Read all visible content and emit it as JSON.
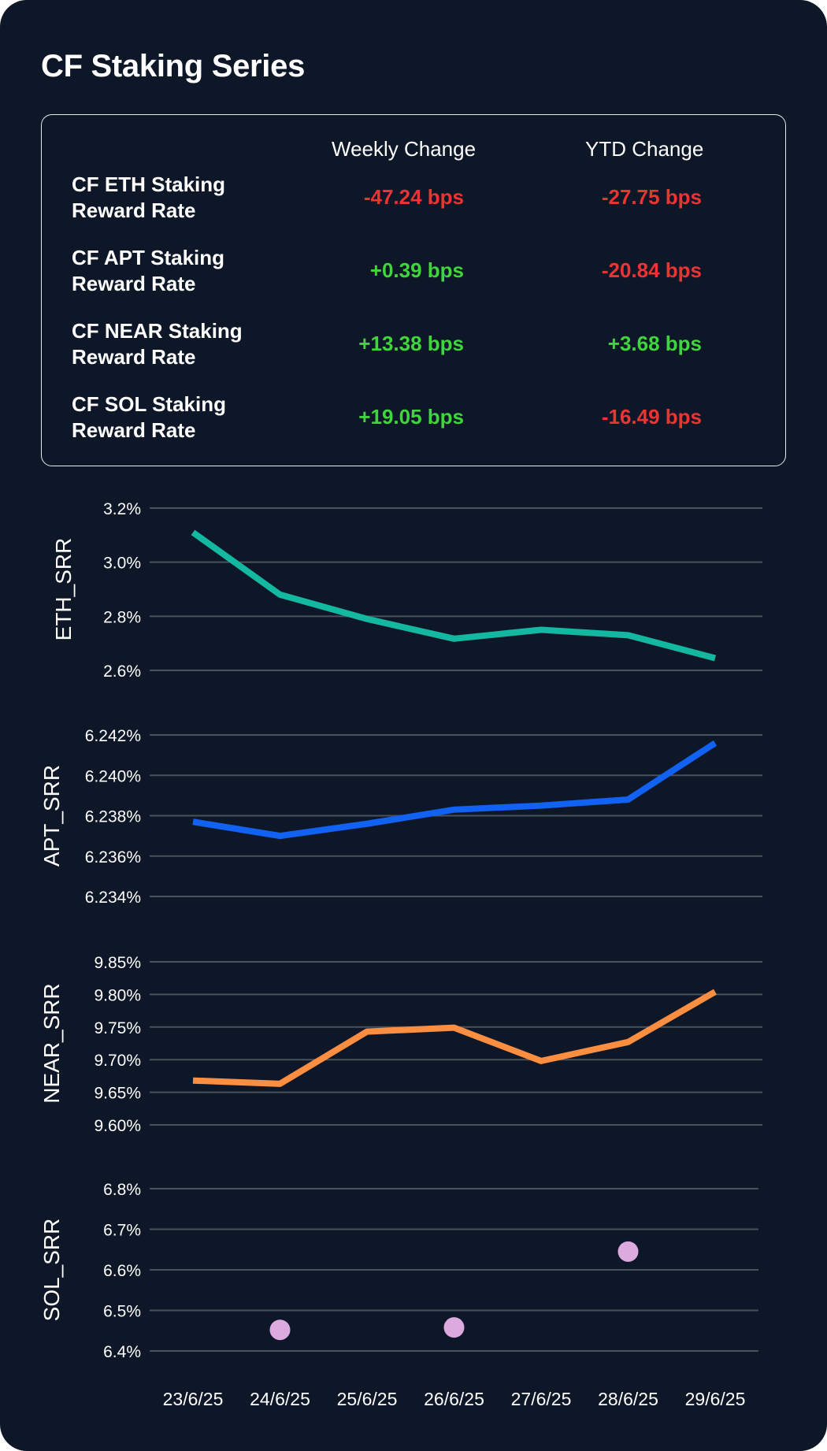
{
  "title": "CF Staking Series",
  "table": {
    "headers": {
      "weekly": "Weekly Change",
      "ytd": "YTD Change"
    },
    "rows": [
      {
        "name_line1": "CF ETH Staking",
        "name_line2": "Reward Rate",
        "weekly": "-47.24 bps",
        "weekly_sign": "neg",
        "ytd": "-27.75 bps",
        "ytd_sign": "neg"
      },
      {
        "name_line1": "CF APT Staking",
        "name_line2": "Reward Rate",
        "weekly": "+0.39 bps",
        "weekly_sign": "pos",
        "ytd": "-20.84 bps",
        "ytd_sign": "neg"
      },
      {
        "name_line1": "CF NEAR Staking",
        "name_line2": "Reward Rate",
        "weekly": "+13.38 bps",
        "weekly_sign": "pos",
        "ytd": "+3.68 bps",
        "ytd_sign": "pos"
      },
      {
        "name_line1": "CF SOL Staking",
        "name_line2": "Reward Rate",
        "weekly": "+19.05 bps",
        "weekly_sign": "pos",
        "ytd": "-16.49 bps",
        "ytd_sign": "neg"
      }
    ]
  },
  "colors": {
    "background": "#0e1727",
    "grid": "#4a505c",
    "negative": "#ee3333",
    "positive": "#3ed63a"
  },
  "chart_data": [
    {
      "type": "line",
      "ylabel": "ETH_SRR",
      "x": [
        "23/6/25",
        "24/6/25",
        "25/6/25",
        "26/6/25",
        "27/6/25",
        "28/6/25",
        "29/6/25"
      ],
      "yticks": [
        "2.6%",
        "2.8%",
        "3.0%",
        "3.2%"
      ],
      "ylim": [
        2.6,
        3.2
      ],
      "color": "#14b7a0",
      "series": [
        {
          "values": [
            3.11,
            2.88,
            2.79,
            2.717,
            2.75,
            2.73,
            2.645
          ]
        }
      ],
      "grid": true
    },
    {
      "type": "line",
      "ylabel": "APT_SRR",
      "x": [
        "23/6/25",
        "24/6/25",
        "25/6/25",
        "26/6/25",
        "27/6/25",
        "28/6/25",
        "29/6/25"
      ],
      "yticks": [
        "6.234%",
        "6.236%",
        "6.238%",
        "6.240%",
        "6.242%"
      ],
      "ylim": [
        6.234,
        6.242
      ],
      "color": "#1161f2",
      "series": [
        {
          "values": [
            6.2377,
            6.237,
            6.2376,
            6.2383,
            6.2385,
            6.2388,
            6.2416
          ]
        }
      ],
      "grid": true
    },
    {
      "type": "line",
      "ylabel": "NEAR_SRR",
      "x": [
        "23/6/25",
        "24/6/25",
        "25/6/25",
        "26/6/25",
        "27/6/25",
        "28/6/25",
        "29/6/25"
      ],
      "yticks": [
        "9.60%",
        "9.65%",
        "9.70%",
        "9.75%",
        "9.80%",
        "9.85%"
      ],
      "ylim": [
        9.6,
        9.85
      ],
      "color": "#fc8e41",
      "series": [
        {
          "values": [
            9.668,
            9.663,
            9.743,
            9.749,
            9.698,
            9.727,
            9.804
          ]
        }
      ],
      "grid": true
    },
    {
      "type": "scatter",
      "ylabel": "SOL_SRR",
      "x": [
        "23/6/25",
        "24/6/25",
        "25/6/25",
        "26/6/25",
        "27/6/25",
        "28/6/25",
        "29/6/25"
      ],
      "yticks": [
        "6.4%",
        "6.5%",
        "6.6%",
        "6.7%",
        "6.8%"
      ],
      "ylim": [
        6.4,
        6.8
      ],
      "color": "#dcaade",
      "series": [
        {
          "values": [
            null,
            6.452,
            null,
            6.458,
            null,
            6.645,
            null
          ]
        }
      ],
      "grid": true
    }
  ]
}
